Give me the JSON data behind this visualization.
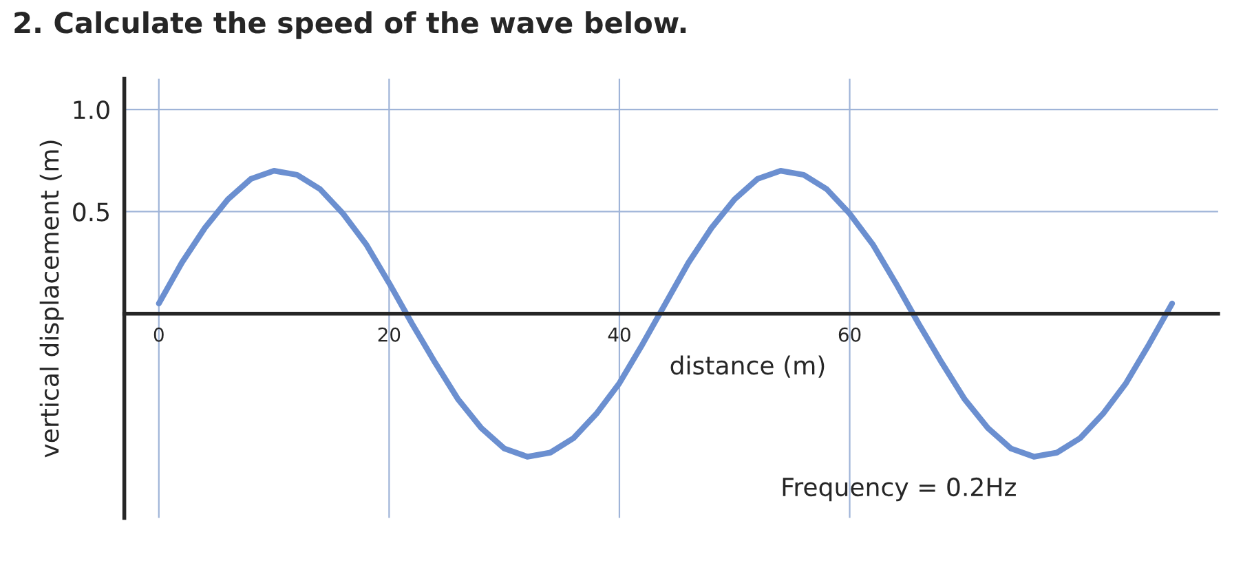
{
  "chart_data": {
    "type": "line",
    "title": "2. Calculate the speed of the wave below.",
    "xlabel": "distance (m)",
    "ylabel": "vertical displacement (m)",
    "x": [
      0,
      2,
      4,
      6,
      8,
      10,
      12,
      14,
      16,
      18,
      20,
      22,
      24,
      26,
      28,
      30,
      32,
      34,
      36,
      38,
      40,
      42,
      44,
      46,
      48,
      50,
      52,
      54,
      56,
      58,
      60,
      62,
      64,
      66,
      68,
      70,
      72,
      74,
      76,
      78,
      80,
      82,
      84,
      86,
      88
    ],
    "series": [
      {
        "color": "#6b8fd0",
        "values": [
          0.05,
          0.25,
          0.42,
          0.56,
          0.66,
          0.7,
          0.68,
          0.61,
          0.49,
          0.34,
          0.15,
          -0.05,
          -0.24,
          -0.42,
          -0.56,
          -0.66,
          -0.7,
          -0.68,
          -0.61,
          -0.49,
          -0.34,
          -0.15,
          0.05,
          0.25,
          0.42,
          0.56,
          0.66,
          0.7,
          0.68,
          0.61,
          0.49,
          0.34,
          0.15,
          -0.05,
          -0.24,
          -0.42,
          -0.56,
          -0.66,
          -0.7,
          -0.68,
          -0.61,
          -0.49,
          -0.34,
          -0.15,
          0.05
        ]
      }
    ],
    "xlim": [
      -3,
      92
    ],
    "ylim": [
      -1.0,
      1.15
    ],
    "xticks": [
      0,
      20,
      40,
      60
    ],
    "yticks": [
      0.5,
      {
        "value": 1.0,
        "label": "1.0"
      }
    ],
    "grid": true,
    "marker": "none",
    "line_style": "solid",
    "annotations": [
      {
        "text": "Frequency = 0.2Hz"
      }
    ]
  }
}
